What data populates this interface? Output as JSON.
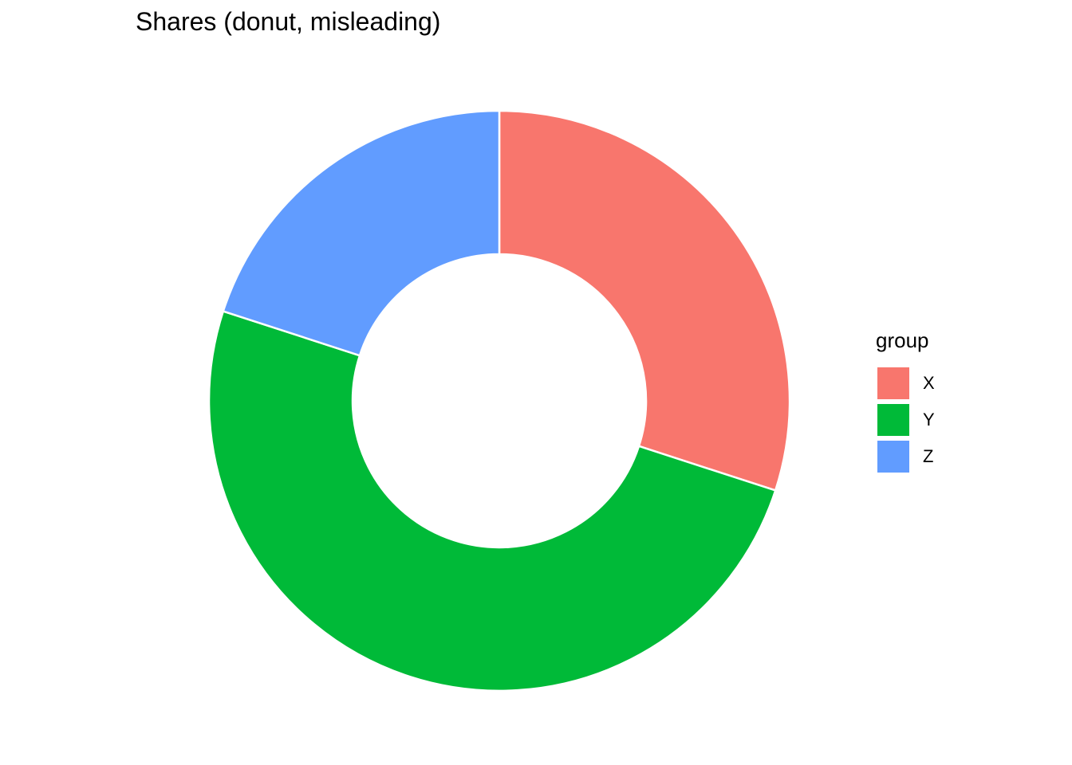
{
  "chart_data": {
    "type": "pie",
    "style": "donut",
    "title": "Shares (donut, misleading)",
    "categories": [
      "X",
      "Y",
      "Z"
    ],
    "values": [
      30,
      50,
      20
    ],
    "colors": [
      "#F8766D",
      "#00BA38",
      "#619CFF"
    ],
    "legend": {
      "title": "group",
      "placement": "right",
      "items": [
        {
          "label": "X",
          "color": "#F8766D"
        },
        {
          "label": "Y",
          "color": "#00BA38"
        },
        {
          "label": "Z",
          "color": "#619CFF"
        }
      ]
    }
  }
}
